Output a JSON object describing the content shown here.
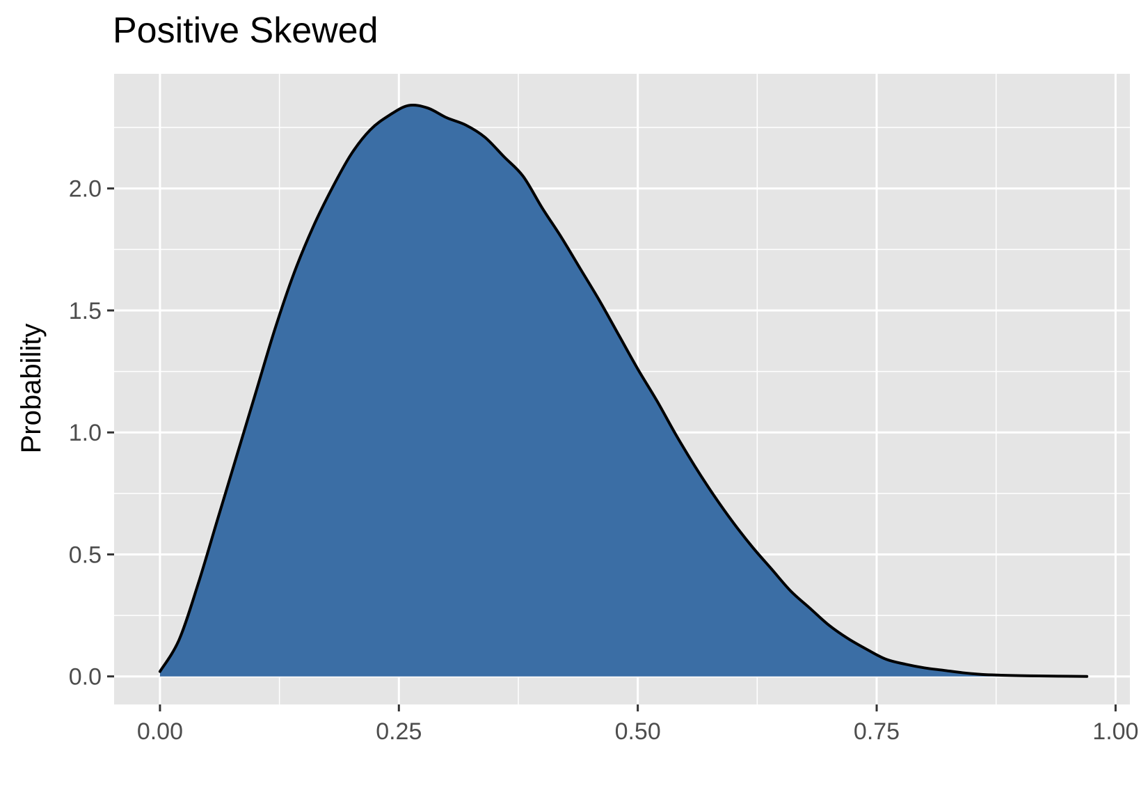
{
  "chart_data": {
    "type": "area",
    "title": "Positive Skewed",
    "xlabel": "",
    "ylabel": "Probability",
    "xlim": [
      -0.048,
      1.015
    ],
    "ylim": [
      -0.115,
      2.47
    ],
    "x_ticks": [
      0.0,
      0.25,
      0.5,
      0.75,
      1.0
    ],
    "x_tick_labels": [
      "0.00",
      "0.25",
      "0.50",
      "0.75",
      "1.00"
    ],
    "y_ticks": [
      0.0,
      0.5,
      1.0,
      1.5,
      2.0
    ],
    "y_tick_labels": [
      "0.0",
      "0.5",
      "1.0",
      "1.5",
      "2.0"
    ],
    "grid": true,
    "legend": "none",
    "colors": {
      "fill": "#3b6ea5",
      "line": "#000000",
      "panel": "#e5e5e5",
      "grid": "#ffffff"
    },
    "series": [
      {
        "x": [
          0.0,
          0.02,
          0.04,
          0.06,
          0.08,
          0.1,
          0.12,
          0.14,
          0.16,
          0.18,
          0.2,
          0.22,
          0.24,
          0.26,
          0.28,
          0.3,
          0.32,
          0.34,
          0.36,
          0.38,
          0.4,
          0.42,
          0.44,
          0.46,
          0.48,
          0.5,
          0.52,
          0.54,
          0.56,
          0.58,
          0.6,
          0.62,
          0.64,
          0.66,
          0.68,
          0.7,
          0.72,
          0.74,
          0.76,
          0.78,
          0.8,
          0.82,
          0.84,
          0.86,
          0.88,
          0.9,
          0.92,
          0.94,
          0.97
        ],
        "y": [
          0.02,
          0.15,
          0.38,
          0.64,
          0.9,
          1.16,
          1.42,
          1.65,
          1.84,
          2.0,
          2.14,
          2.24,
          2.3,
          2.34,
          2.33,
          2.29,
          2.26,
          2.21,
          2.13,
          2.05,
          1.92,
          1.8,
          1.67,
          1.54,
          1.4,
          1.26,
          1.13,
          0.99,
          0.86,
          0.74,
          0.63,
          0.53,
          0.44,
          0.35,
          0.28,
          0.21,
          0.155,
          0.11,
          0.07,
          0.05,
          0.035,
          0.025,
          0.015,
          0.008,
          0.005,
          0.003,
          0.002,
          0.001,
          0.0
        ]
      }
    ]
  }
}
